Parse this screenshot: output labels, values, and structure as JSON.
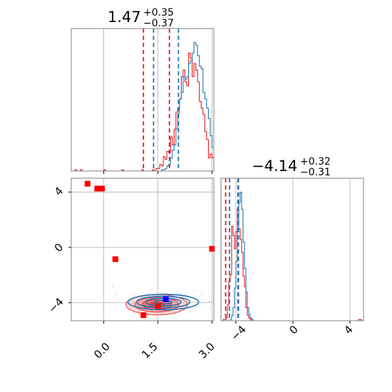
{
  "chart_data": {
    "type": "corner",
    "colors": {
      "red": "#e41a1c",
      "blue": "#1f77b4",
      "grid": "#b0b0b0",
      "axis": "#808080",
      "truth_marker_blue": "#0000ff",
      "point_red": "#ff0000"
    },
    "panels": [
      {
        "panel": "hist-param-1",
        "title": {
          "value": "1.47",
          "plus": "+0.35",
          "minus": "−0.37"
        },
        "xlim": [
          -0.9,
          3.05
        ],
        "xticks": [
          0.0,
          1.5,
          3.0
        ],
        "grid": true,
        "series": [
          {
            "color": "red",
            "bin_start": -0.9,
            "bin_width": 0.05,
            "heights": [
              0,
              0,
              0.01,
              0,
              0,
              0.01,
              0,
              0,
              0,
              0,
              0,
              0,
              0,
              0,
              0,
              0,
              0,
              0,
              0.01,
              0,
              0,
              0,
              0,
              0,
              0,
              0,
              0,
              0,
              0.01,
              0,
              0,
              0,
              0,
              0,
              0,
              0,
              0,
              0,
              0,
              0.01,
              0,
              0,
              0,
              0,
              0,
              0.01,
              0,
              0.02,
              0.02,
              0.05,
              0.04,
              0.11,
              0.09,
              0.15,
              0.14,
              0.26,
              0.2,
              0.32,
              0.45,
              0.48,
              0.55,
              0.72,
              0.77,
              0.68,
              0.65,
              0.9,
              0.86,
              0.72,
              0.82,
              0.77,
              0.68,
              0.53,
              0.48,
              0.43,
              0.3,
              0.24,
              0.1,
              0.13,
              0.1,
              0.05,
              0.03,
              0.02,
              0.01,
              0,
              0,
              0
            ]
          },
          {
            "color": "blue",
            "bin_start": -0.9,
            "bin_width": 0.05,
            "heights": [
              0,
              0,
              0,
              0,
              0,
              0,
              0,
              0,
              0,
              0,
              0,
              0,
              0,
              0,
              0,
              0,
              0,
              0,
              0,
              0,
              0,
              0,
              0,
              0,
              0,
              0,
              0,
              0,
              0,
              0,
              0,
              0,
              0,
              0,
              0,
              0,
              0,
              0,
              0,
              0,
              0,
              0,
              0,
              0,
              0,
              0,
              0,
              0,
              0,
              0,
              0.01,
              0.01,
              0.02,
              0.04,
              0.05,
              0.1,
              0.16,
              0.2,
              0.32,
              0.44,
              0.55,
              0.6,
              0.72,
              0.7,
              0.72,
              0.82,
              0.84,
              0.9,
              0.98,
              0.96,
              0.88,
              0.8,
              0.78,
              0.6,
              0.55,
              0.48,
              0.4,
              0.27,
              0.18,
              0.14,
              0.09,
              0.05,
              0.03,
              0.01,
              0.01,
              0
            ]
          }
        ],
        "quantile_lines": {
          "red": [
            1.1,
            1.82
          ],
          "blue": [
            1.38,
            2.07
          ]
        }
      },
      {
        "panel": "hist-param-2",
        "title": {
          "value": "−4.14",
          "plus": "+0.32",
          "minus": "−0.31"
        },
        "xlim": [
          -5.05,
          4.95
        ],
        "xticks": [
          -4,
          0,
          4
        ],
        "grid": true,
        "series": [
          {
            "color": "red",
            "bin_start": -5.0,
            "bin_width": 0.1,
            "heights": [
              0,
              0.01,
              0.01,
              0.02,
              0.12,
              0.3,
              0.35,
              0.72,
              0.65,
              0.55,
              0.68,
              0.85,
              0.7,
              0.62,
              0.52,
              0.34,
              0.26,
              0.1,
              0.04,
              0.02,
              0.01,
              0,
              0,
              0,
              0,
              0,
              0,
              0,
              0,
              0,
              0,
              0,
              0,
              0,
              0,
              0,
              0,
              0,
              0,
              0,
              0,
              0,
              0,
              0,
              0,
              0,
              0,
              0,
              0,
              0,
              0,
              0,
              0,
              0,
              0,
              0,
              0,
              0,
              0,
              0,
              0,
              0,
              0,
              0,
              0,
              0,
              0,
              0,
              0,
              0,
              0,
              0,
              0,
              0,
              0,
              0,
              0,
              0,
              0,
              0,
              0,
              0,
              0,
              0,
              0,
              0,
              0,
              0,
              0,
              0,
              0,
              0,
              0,
              0,
              0,
              0,
              0.01,
              0.01,
              0,
              0
            ]
          },
          {
            "color": "blue",
            "bin_start": -5.0,
            "bin_width": 0.1,
            "heights": [
              0,
              0,
              0,
              0,
              0,
              0,
              0.01,
              0.04,
              0.1,
              0.25,
              0.45,
              0.7,
              0.9,
              0.98,
              0.85,
              0.6,
              0.4,
              0.22,
              0.1,
              0.05,
              0.02,
              0.01,
              0,
              0,
              0,
              0,
              0,
              0,
              0,
              0,
              0,
              0,
              0,
              0,
              0,
              0,
              0,
              0,
              0,
              0,
              0,
              0,
              0,
              0,
              0,
              0,
              0,
              0,
              0,
              0,
              0,
              0,
              0,
              0,
              0,
              0,
              0,
              0,
              0,
              0,
              0,
              0,
              0,
              0,
              0,
              0,
              0,
              0,
              0,
              0,
              0,
              0,
              0,
              0,
              0,
              0,
              0,
              0,
              0,
              0,
              0,
              0,
              0,
              0,
              0,
              0,
              0,
              0,
              0,
              0,
              0,
              0,
              0,
              0,
              0,
              0,
              0,
              0,
              0,
              0
            ]
          }
        ],
        "quantile_lines": {
          "red": [
            -4.72,
            -3.86
          ],
          "blue": [
            -4.45,
            -3.82
          ]
        }
      },
      {
        "panel": "scatter-2d",
        "xlim": [
          -0.9,
          3.05
        ],
        "ylim": [
          -5.3,
          5.0
        ],
        "xticks": [
          0.0,
          1.5,
          3.0
        ],
        "yticks": [
          -4,
          0,
          4
        ],
        "grid": true,
        "red_points": [
          {
            "x": -0.45,
            "y": 4.6
          },
          {
            "x": -0.18,
            "y": 4.25
          },
          {
            "x": -0.05,
            "y": 4.25
          },
          {
            "x": 0.32,
            "y": -0.85
          },
          {
            "x": 3.0,
            "y": -0.1
          },
          {
            "x": 1.1,
            "y": -4.9
          },
          {
            "x": 1.5,
            "y": -4.25
          }
        ],
        "blue_point": {
          "x": 1.72,
          "y": -3.75
        },
        "contours": {
          "red": {
            "center": [
              1.47,
              -4.14
            ],
            "sx": 0.37,
            "sy": 0.32,
            "levels": [
              0.55,
              1.1,
              1.65,
              2.3
            ]
          },
          "blue": {
            "center": [
              1.65,
              -3.95
            ],
            "sx": 0.35,
            "sy": 0.2,
            "levels": [
              0.7,
              1.4,
              2.1,
              2.8
            ]
          }
        }
      }
    ]
  },
  "tick_labels": {
    "p1_x": [
      "0.0",
      "1.5",
      "3.0"
    ],
    "p2_x": [
      "−4",
      "0",
      "4"
    ],
    "p3_y": [
      "4",
      "0",
      "−4"
    ]
  }
}
